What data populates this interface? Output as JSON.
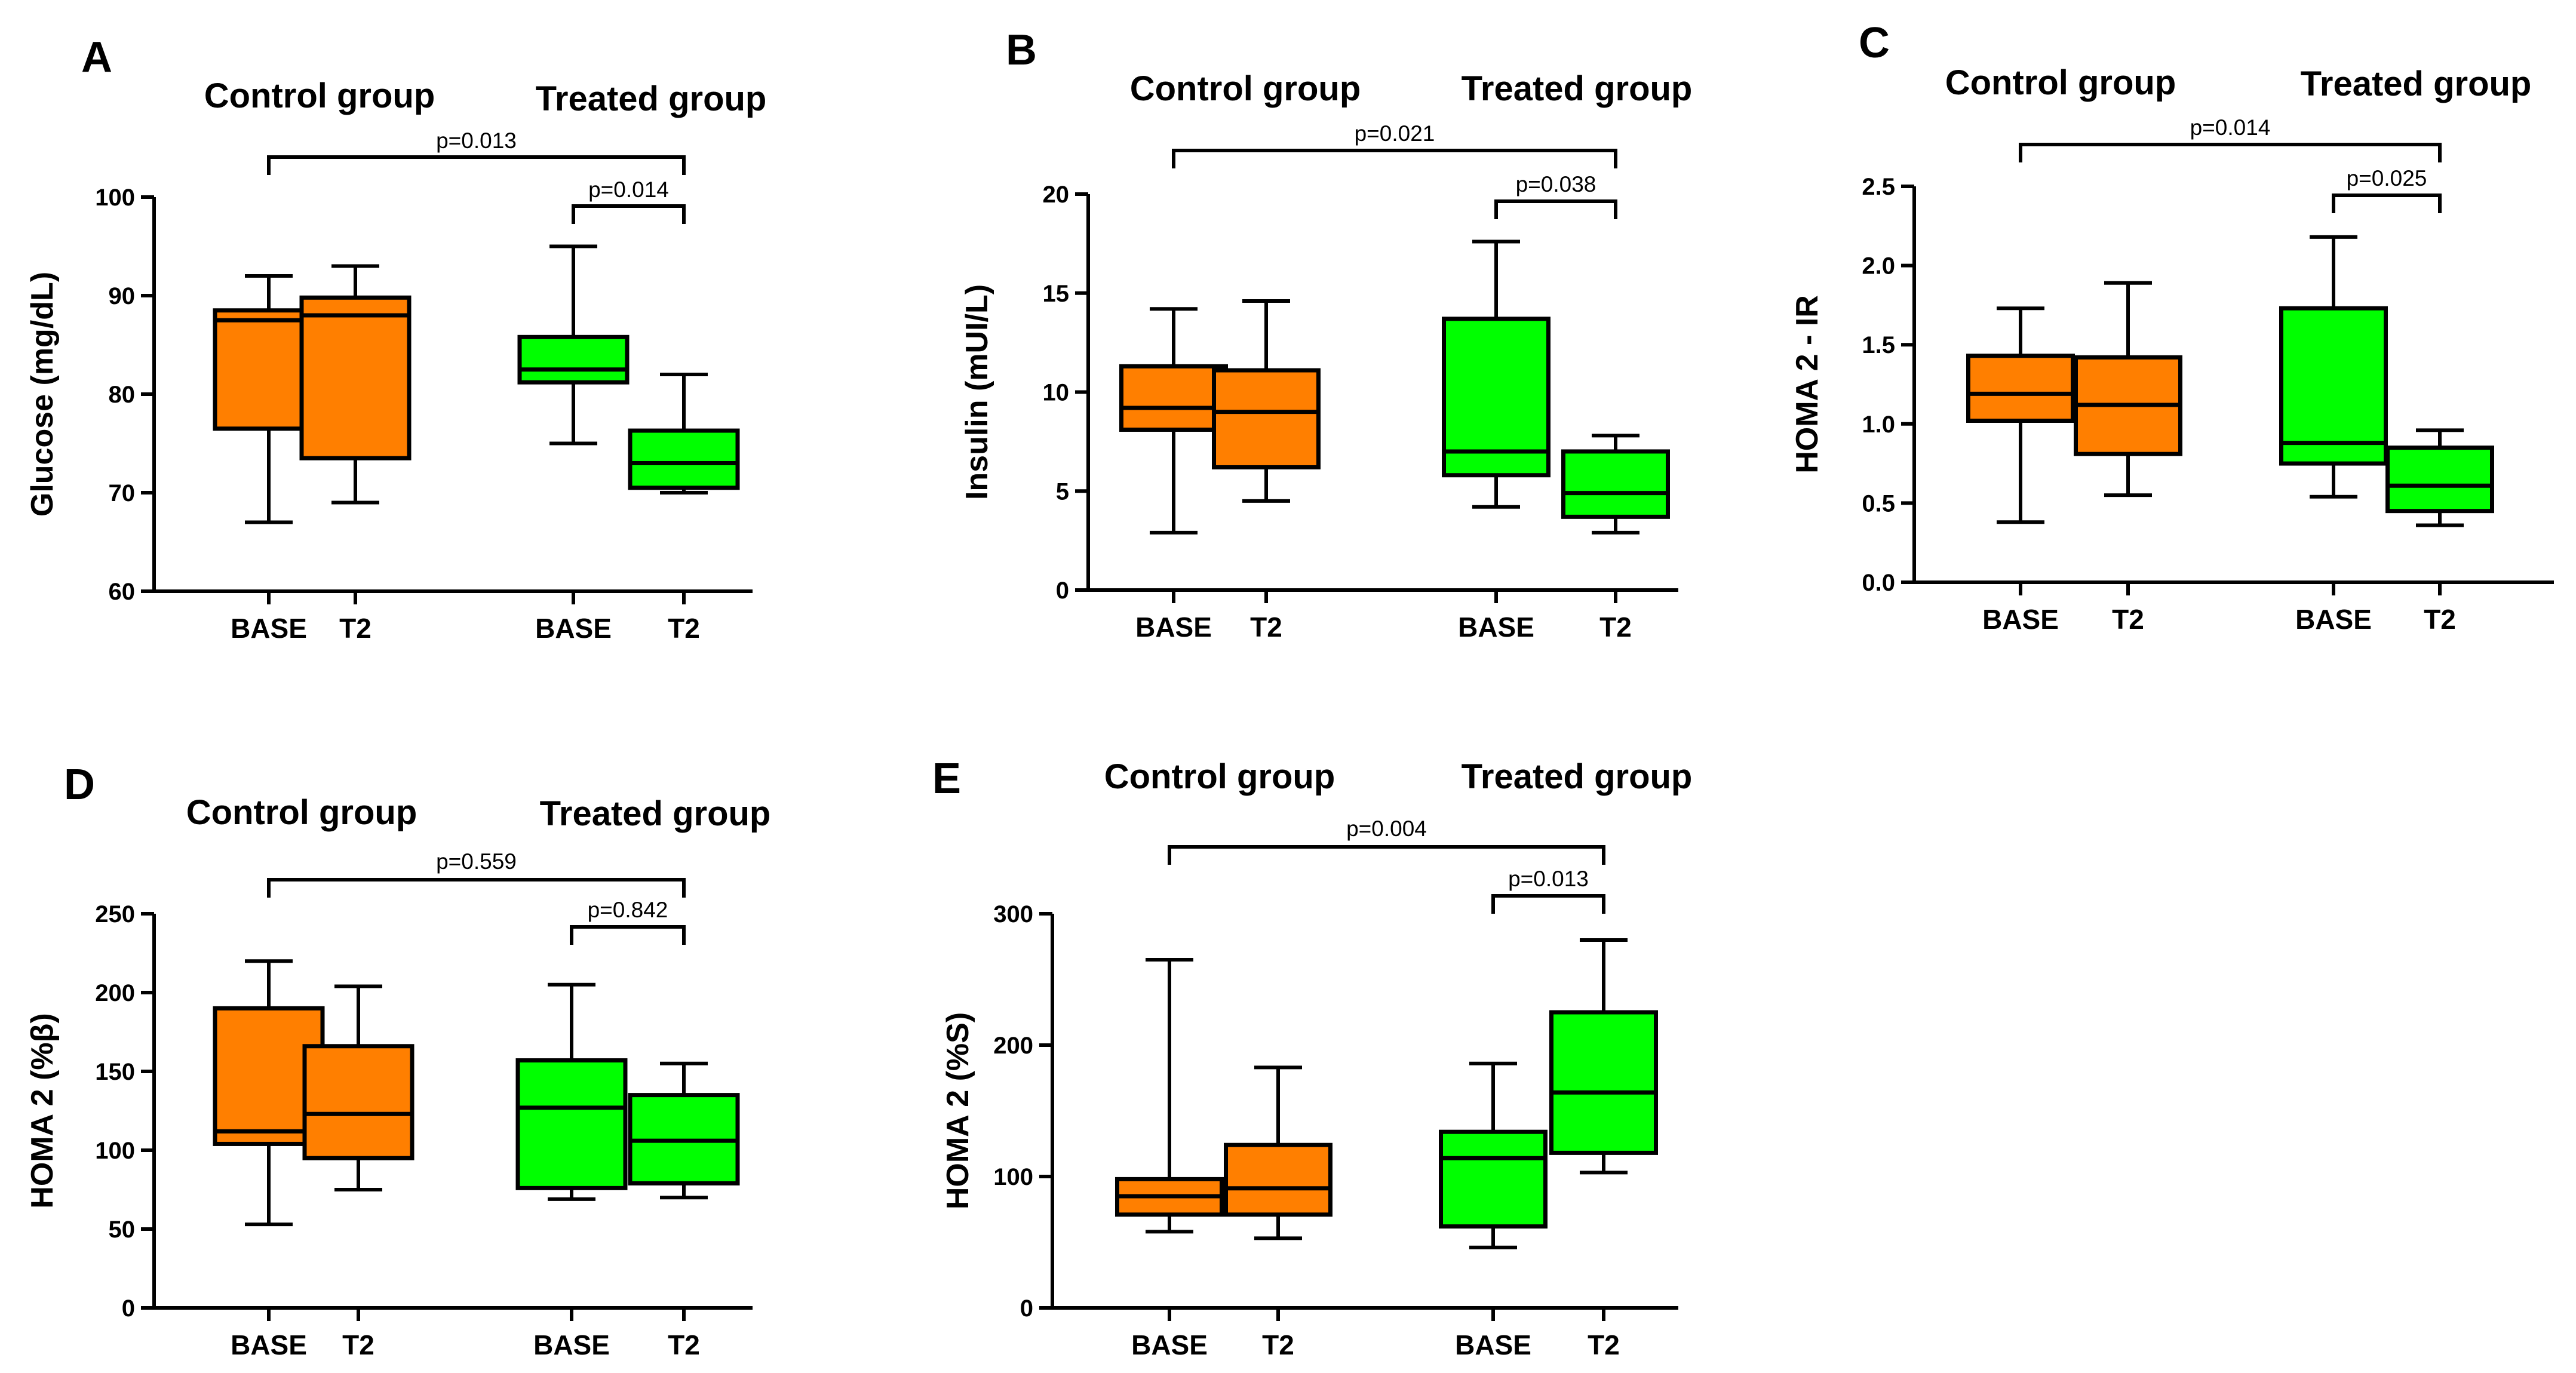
{
  "figure": {
    "description_text": "",
    "colors": {
      "control": "#FF7F00",
      "treated": "#00FF00",
      "stroke": "#000000"
    }
  },
  "chart_data": [
    {
      "panel": "A",
      "type": "box",
      "ylabel": "Glucose (mg/dL)",
      "ylim": [
        60,
        100
      ],
      "yticks": [
        60,
        70,
        80,
        90,
        100
      ],
      "groups": [
        "Control group",
        "Treated group"
      ],
      "categories": [
        "BASE",
        "T2",
        "BASE",
        "T2"
      ],
      "boxes": [
        {
          "group": "control",
          "min": 67,
          "q1": 76.5,
          "median": 87.5,
          "q3": 88.5,
          "max": 92
        },
        {
          "group": "control",
          "min": 69,
          "q1": 73.5,
          "median": 88,
          "q3": 89.8,
          "max": 93
        },
        {
          "group": "treated",
          "min": 75,
          "q1": 81.2,
          "median": 82.5,
          "q3": 85.8,
          "max": 95
        },
        {
          "group": "treated",
          "min": 70,
          "q1": 70.5,
          "median": 73,
          "q3": 76.3,
          "max": 82
        }
      ],
      "comparisons": [
        {
          "from": 0,
          "to": 3,
          "label": "p=0.013"
        },
        {
          "from": 2,
          "to": 3,
          "label": "p=0.014"
        }
      ]
    },
    {
      "panel": "B",
      "type": "box",
      "ylabel": "Insulin (mUI/L)",
      "ylim": [
        0,
        20
      ],
      "yticks": [
        0,
        5,
        10,
        15,
        20
      ],
      "groups": [
        "Control group",
        "Treated group"
      ],
      "categories": [
        "BASE",
        "T2",
        "BASE",
        "T2"
      ],
      "boxes": [
        {
          "group": "control",
          "min": 2.9,
          "q1": 8.1,
          "median": 9.2,
          "q3": 11.3,
          "max": 14.2
        },
        {
          "group": "control",
          "min": 4.5,
          "q1": 6.2,
          "median": 9.0,
          "q3": 11.1,
          "max": 14.6
        },
        {
          "group": "treated",
          "min": 4.2,
          "q1": 5.8,
          "median": 7.0,
          "q3": 13.7,
          "max": 17.6
        },
        {
          "group": "treated",
          "min": 2.9,
          "q1": 3.7,
          "median": 4.9,
          "q3": 7.0,
          "max": 7.8
        }
      ],
      "comparisons": [
        {
          "from": 0,
          "to": 3,
          "label": "p=0.021"
        },
        {
          "from": 2,
          "to": 3,
          "label": "p=0.038"
        }
      ]
    },
    {
      "panel": "C",
      "type": "box",
      "ylabel": "HOMA 2 - IR",
      "ylim": [
        0,
        2.5
      ],
      "yticks": [
        0.0,
        0.5,
        1.0,
        1.5,
        2.0,
        2.5
      ],
      "yticklabels": [
        "0.0",
        "0.5",
        "1.0",
        "1.5",
        "2.0",
        "2.5"
      ],
      "groups": [
        "Control group",
        "Treated group"
      ],
      "categories": [
        "BASE",
        "T2",
        "BASE",
        "T2"
      ],
      "boxes": [
        {
          "group": "control",
          "min": 0.38,
          "q1": 1.02,
          "median": 1.19,
          "q3": 1.43,
          "max": 1.73
        },
        {
          "group": "control",
          "min": 0.55,
          "q1": 0.81,
          "median": 1.12,
          "q3": 1.42,
          "max": 1.89
        },
        {
          "group": "treated",
          "min": 0.54,
          "q1": 0.75,
          "median": 0.88,
          "q3": 1.73,
          "max": 2.18
        },
        {
          "group": "treated",
          "min": 0.36,
          "q1": 0.45,
          "median": 0.61,
          "q3": 0.85,
          "max": 0.96
        }
      ],
      "comparisons": [
        {
          "from": 0,
          "to": 3,
          "label": "p=0.014"
        },
        {
          "from": 2,
          "to": 3,
          "label": "p=0.025"
        }
      ]
    },
    {
      "panel": "D",
      "type": "box",
      "ylabel": "HOMA 2 (%β)",
      "ylim": [
        0,
        250
      ],
      "yticks": [
        0,
        50,
        100,
        150,
        200,
        250
      ],
      "groups": [
        "Control group",
        "Treated group"
      ],
      "categories": [
        "BASE",
        "T2",
        "BASE",
        "T2"
      ],
      "boxes": [
        {
          "group": "control",
          "min": 53,
          "q1": 104,
          "median": 112,
          "q3": 190,
          "max": 220
        },
        {
          "group": "control",
          "min": 75,
          "q1": 95,
          "median": 123,
          "q3": 166,
          "max": 204
        },
        {
          "group": "treated",
          "min": 69,
          "q1": 76,
          "median": 127,
          "q3": 157,
          "max": 205
        },
        {
          "group": "treated",
          "min": 70,
          "q1": 79,
          "median": 106,
          "q3": 135,
          "max": 155
        }
      ],
      "comparisons": [
        {
          "from": 0,
          "to": 3,
          "label": "p=0.559"
        },
        {
          "from": 2,
          "to": 3,
          "label": "p=0.842"
        }
      ]
    },
    {
      "panel": "E",
      "type": "box",
      "ylabel": "HOMA 2 (%S)",
      "ylim": [
        0,
        300
      ],
      "yticks": [
        0,
        100,
        200,
        300
      ],
      "groups": [
        "Control group",
        "Treated group"
      ],
      "categories": [
        "BASE",
        "T2",
        "BASE",
        "T2"
      ],
      "boxes": [
        {
          "group": "control",
          "min": 58,
          "q1": 71,
          "median": 85,
          "q3": 98,
          "max": 265
        },
        {
          "group": "control",
          "min": 53,
          "q1": 71,
          "median": 91,
          "q3": 124,
          "max": 183
        },
        {
          "group": "treated",
          "min": 46,
          "q1": 62,
          "median": 114,
          "q3": 134,
          "max": 186
        },
        {
          "group": "treated",
          "min": 103,
          "q1": 118,
          "median": 164,
          "q3": 225,
          "max": 280
        }
      ],
      "comparisons": [
        {
          "from": 0,
          "to": 3,
          "label": "p=0.004"
        },
        {
          "from": 2,
          "to": 3,
          "label": "p=0.013"
        }
      ]
    }
  ]
}
